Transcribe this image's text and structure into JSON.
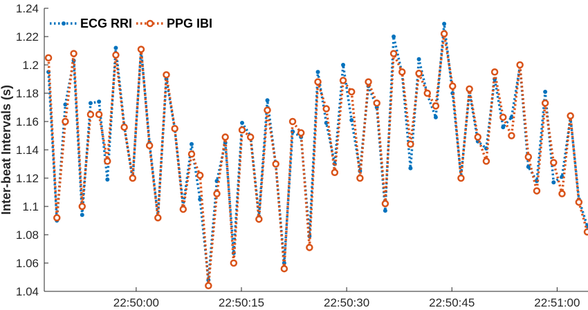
{
  "chart_data": {
    "type": "line",
    "title": "",
    "xlabel": "",
    "ylabel": "Inter-beat Intervals (s)",
    "ylim": [
      1.04,
      1.24
    ],
    "xlim": [
      "22:49:47",
      "22:51:04"
    ],
    "grid": false,
    "legend_position": "top-left",
    "y_ticks": [
      "1.04",
      "1.06",
      "1.08",
      "1.1",
      "1.12",
      "1.14",
      "1.16",
      "1.18",
      "1.2",
      "1.22",
      "1.24"
    ],
    "x_ticks": [
      "22:50:00",
      "22:50:15",
      "22:50:30",
      "22:50:45",
      "22:51:00"
    ],
    "x_tick_values": [
      60,
      75,
      90,
      105,
      120
    ],
    "series": [
      {
        "name": "ECG RRI",
        "color": "#0072BD",
        "marker": "dot",
        "line_style": "dotted",
        "points": [
          [
            47.5,
            1.195
          ],
          [
            48.7,
            1.09
          ],
          [
            49.9,
            1.172
          ],
          [
            51.1,
            1.203
          ],
          [
            52.3,
            1.094
          ],
          [
            53.5,
            1.173
          ],
          [
            54.7,
            1.174
          ],
          [
            55.9,
            1.119
          ],
          [
            57.1,
            1.212
          ],
          [
            58.3,
            1.157
          ],
          [
            59.5,
            1.119
          ],
          [
            60.7,
            1.211
          ],
          [
            61.9,
            1.145
          ],
          [
            63.1,
            1.093
          ],
          [
            64.3,
            1.19
          ],
          [
            65.5,
            1.155
          ],
          [
            66.7,
            1.1
          ],
          [
            67.9,
            1.144
          ],
          [
            69.1,
            1.105
          ],
          [
            70.3,
            1.048
          ],
          [
            71.5,
            1.118
          ],
          [
            72.7,
            1.145
          ],
          [
            73.9,
            1.067
          ],
          [
            75.1,
            1.159
          ],
          [
            76.3,
            1.15
          ],
          [
            77.5,
            1.093
          ],
          [
            78.7,
            1.175
          ],
          [
            79.9,
            1.129
          ],
          [
            81.1,
            1.06
          ],
          [
            82.3,
            1.153
          ],
          [
            83.5,
            1.149
          ],
          [
            84.7,
            1.079
          ],
          [
            85.9,
            1.195
          ],
          [
            87.1,
            1.159
          ],
          [
            88.3,
            1.13
          ],
          [
            89.5,
            1.2
          ],
          [
            90.7,
            1.161
          ],
          [
            91.9,
            1.125
          ],
          [
            93.1,
            1.185
          ],
          [
            94.3,
            1.17
          ],
          [
            95.5,
            1.097
          ],
          [
            96.7,
            1.22
          ],
          [
            97.9,
            1.194
          ],
          [
            99.1,
            1.127
          ],
          [
            100.3,
            1.204
          ],
          [
            101.5,
            1.179
          ],
          [
            102.7,
            1.163
          ],
          [
            103.9,
            1.229
          ],
          [
            105.1,
            1.18
          ],
          [
            106.3,
            1.121
          ],
          [
            107.5,
            1.181
          ],
          [
            108.7,
            1.146
          ],
          [
            109.9,
            1.141
          ],
          [
            111.1,
            1.19
          ],
          [
            112.3,
            1.156
          ],
          [
            113.5,
            1.163
          ],
          [
            114.7,
            1.199
          ],
          [
            115.9,
            1.128
          ],
          [
            117.1,
            1.118
          ],
          [
            118.3,
            1.181
          ],
          [
            119.5,
            1.117
          ],
          [
            120.7,
            1.121
          ],
          [
            121.9,
            1.163
          ],
          [
            123.1,
            1.105
          ],
          [
            124.3,
            1.086
          ]
        ]
      },
      {
        "name": "PPG IBI",
        "color": "#D95319",
        "marker": "circle",
        "line_style": "dotted",
        "points": [
          [
            47.5,
            1.205
          ],
          [
            48.7,
            1.092
          ],
          [
            49.9,
            1.16
          ],
          [
            51.1,
            1.208
          ],
          [
            52.3,
            1.1
          ],
          [
            53.5,
            1.165
          ],
          [
            54.7,
            1.165
          ],
          [
            55.9,
            1.132
          ],
          [
            57.1,
            1.207
          ],
          [
            58.3,
            1.156
          ],
          [
            59.5,
            1.12
          ],
          [
            60.7,
            1.211
          ],
          [
            61.9,
            1.143
          ],
          [
            63.1,
            1.092
          ],
          [
            64.3,
            1.193
          ],
          [
            65.5,
            1.155
          ],
          [
            66.7,
            1.098
          ],
          [
            67.9,
            1.137
          ],
          [
            69.1,
            1.122
          ],
          [
            70.3,
            1.044
          ],
          [
            71.5,
            1.109
          ],
          [
            72.7,
            1.149
          ],
          [
            73.9,
            1.06
          ],
          [
            75.1,
            1.154
          ],
          [
            76.3,
            1.149
          ],
          [
            77.5,
            1.091
          ],
          [
            78.7,
            1.168
          ],
          [
            79.9,
            1.13
          ],
          [
            81.1,
            1.056
          ],
          [
            82.3,
            1.16
          ],
          [
            83.5,
            1.152
          ],
          [
            84.7,
            1.071
          ],
          [
            85.9,
            1.188
          ],
          [
            87.1,
            1.169
          ],
          [
            88.3,
            1.124
          ],
          [
            89.5,
            1.189
          ],
          [
            90.7,
            1.181
          ],
          [
            91.9,
            1.12
          ],
          [
            93.1,
            1.188
          ],
          [
            94.3,
            1.173
          ],
          [
            95.5,
            1.102
          ],
          [
            96.7,
            1.208
          ],
          [
            97.9,
            1.195
          ],
          [
            99.1,
            1.144
          ],
          [
            100.3,
            1.194
          ],
          [
            101.5,
            1.18
          ],
          [
            102.7,
            1.171
          ],
          [
            103.9,
            1.222
          ],
          [
            105.1,
            1.185
          ],
          [
            106.3,
            1.12
          ],
          [
            107.5,
            1.183
          ],
          [
            108.7,
            1.149
          ],
          [
            109.9,
            1.132
          ],
          [
            111.1,
            1.195
          ],
          [
            112.3,
            1.163
          ],
          [
            113.5,
            1.15
          ],
          [
            114.7,
            1.2
          ],
          [
            115.9,
            1.135
          ],
          [
            117.1,
            1.111
          ],
          [
            118.3,
            1.173
          ],
          [
            119.5,
            1.131
          ],
          [
            120.7,
            1.109
          ],
          [
            121.9,
            1.164
          ],
          [
            123.1,
            1.103
          ],
          [
            124.3,
            1.082
          ]
        ]
      }
    ]
  }
}
